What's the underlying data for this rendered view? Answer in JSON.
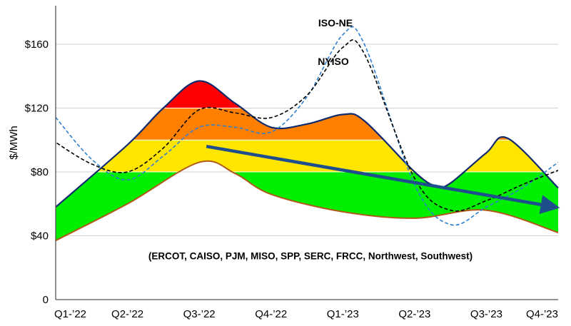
{
  "chart_data": {
    "type": "area",
    "ylabel": "$/MWh",
    "ylim": [
      0,
      180
    ],
    "grid": true,
    "yticks": [
      {
        "value": 0,
        "label": "0"
      },
      {
        "value": 40,
        "label": "$40"
      },
      {
        "value": 80,
        "label": "$80"
      },
      {
        "value": 120,
        "label": "$120"
      },
      {
        "value": 160,
        "label": "$160"
      }
    ],
    "categories": [
      "Q1-’22",
      "Q2-’22",
      "Q3-’22",
      "Q4-’22",
      "Q1-’23",
      "Q2-’23",
      "Q3-’23",
      "Q4-’23"
    ],
    "color_bands": [
      {
        "from": 0,
        "to": 80,
        "color": "#00ee00"
      },
      {
        "from": 80,
        "to": 100,
        "color": "#ffe600"
      },
      {
        "from": 100,
        "to": 120,
        "color": "#ff8000"
      },
      {
        "from": 120,
        "to": 180,
        "color": "#ff0000"
      }
    ],
    "band_upper": {
      "name": "",
      "color": "#102a6e",
      "points": [
        [
          0,
          58
        ],
        [
          1,
          97
        ],
        [
          1.5,
          120
        ],
        [
          2,
          137
        ],
        [
          2.5,
          123
        ],
        [
          3,
          108
        ],
        [
          3.5,
          110
        ],
        [
          4,
          116
        ],
        [
          4.3,
          112
        ],
        [
          5,
          80
        ],
        [
          5.3,
          71
        ],
        [
          5.5,
          73
        ],
        [
          6,
          92
        ],
        [
          6.3,
          101
        ],
        [
          7,
          70
        ]
      ]
    },
    "band_lower": {
      "name": "",
      "color": "#b05a1a",
      "points": [
        [
          0,
          37
        ],
        [
          1,
          60
        ],
        [
          2,
          86
        ],
        [
          2.5,
          79
        ],
        [
          3,
          66
        ],
        [
          4,
          55
        ],
        [
          5,
          51
        ],
        [
          6,
          56
        ],
        [
          7,
          42
        ]
      ]
    },
    "lines": [
      {
        "name": "ISO-NE",
        "color": "#2f7fd0",
        "style": "dashed",
        "points": [
          [
            -0.05,
            117
          ],
          [
            0.5,
            88
          ],
          [
            1,
            75
          ],
          [
            1.5,
            90
          ],
          [
            2,
            108
          ],
          [
            2.5,
            108
          ],
          [
            3,
            105
          ],
          [
            3.5,
            127
          ],
          [
            4,
            166
          ],
          [
            4.3,
            160
          ],
          [
            5,
            72
          ],
          [
            5.5,
            47
          ],
          [
            6,
            58
          ],
          [
            6.5,
            70
          ],
          [
            7,
            86
          ]
        ]
      },
      {
        "name": "NYISO",
        "color": "#000000",
        "style": "dashed",
        "points": [
          [
            -0.05,
            100
          ],
          [
            0.5,
            85
          ],
          [
            1,
            80
          ],
          [
            1.5,
            95
          ],
          [
            2,
            119
          ],
          [
            2.5,
            117
          ],
          [
            3,
            114
          ],
          [
            3.5,
            128
          ],
          [
            4,
            158
          ],
          [
            4.3,
            154
          ],
          [
            5,
            76
          ],
          [
            5.5,
            56
          ],
          [
            6,
            62
          ],
          [
            6.5,
            72
          ],
          [
            7,
            81
          ]
        ]
      }
    ],
    "trend_arrow": {
      "from": [
        2.1,
        96
      ],
      "to": [
        7,
        58
      ],
      "color": "#1f4e8c"
    },
    "annotations": {
      "region_label": "(ERCOT, CAISO, PJM, MISO, SPP, SERC, FRCC, Northwest, Southwest)",
      "region_label_anchor": [
        3.55,
        27
      ]
    }
  }
}
